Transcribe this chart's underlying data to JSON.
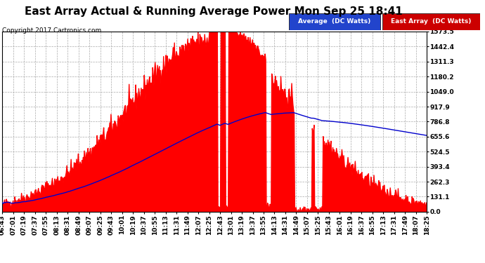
{
  "title": "East Array Actual & Running Average Power Mon Sep 25 18:41",
  "copyright": "Copyright 2017 Cartronics.com",
  "ylim": [
    0,
    1573.5
  ],
  "yticks": [
    0.0,
    131.1,
    262.3,
    393.4,
    524.5,
    655.6,
    786.8,
    917.9,
    1049.0,
    1180.2,
    1311.3,
    1442.4,
    1573.5
  ],
  "legend_labels": [
    "Average  (DC Watts)",
    "East Array  (DC Watts)"
  ],
  "background_color": "#ffffff",
  "plot_bg_color": "#ffffff",
  "grid_color": "#aaaaaa",
  "area_color": "#ff0000",
  "line_color": "#0000cc",
  "title_fontsize": 11,
  "tick_label_fontsize": 6.5,
  "x_labels": [
    "06:43",
    "07:01",
    "07:19",
    "07:37",
    "07:55",
    "08:13",
    "08:31",
    "08:49",
    "09:07",
    "09:25",
    "09:43",
    "10:01",
    "10:19",
    "10:37",
    "10:55",
    "11:13",
    "11:31",
    "11:49",
    "12:07",
    "12:25",
    "12:43",
    "13:01",
    "13:19",
    "13:37",
    "13:55",
    "14:13",
    "14:31",
    "14:49",
    "15:07",
    "15:25",
    "15:43",
    "16:01",
    "16:19",
    "16:37",
    "16:55",
    "17:13",
    "17:31",
    "17:49",
    "18:07",
    "18:25"
  ]
}
